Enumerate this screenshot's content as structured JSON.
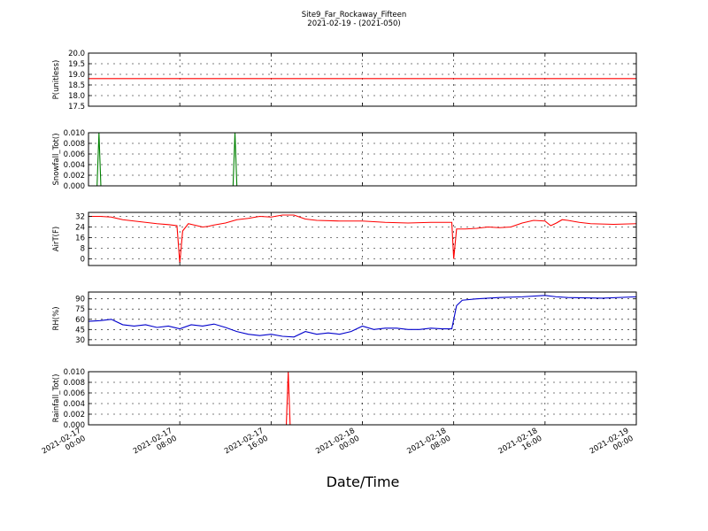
{
  "chart_data": {
    "title": "Site9_Far_Rockaway_Fifteen",
    "subtitle": "2021-02-19 - (2021-050)",
    "xlabel": "Date/Time",
    "type": "line",
    "x_ticks": [
      {
        "line1": "2021-02-17",
        "line2": "00:00"
      },
      {
        "line1": "2021-02-17",
        "line2": "08:00"
      },
      {
        "line1": "2021-02-17",
        "line2": "16:00"
      },
      {
        "line1": "2021-02-18",
        "line2": "00:00"
      },
      {
        "line1": "2021-02-18",
        "line2": "08:00"
      },
      {
        "line1": "2021-02-18",
        "line2": "16:00"
      },
      {
        "line1": "2021-02-19",
        "line2": "00:00"
      }
    ],
    "xlim": [
      "2021-02-17 00:00",
      "2021-02-19 00:00"
    ],
    "grid": true,
    "panels": [
      {
        "ylabel": "P(unitless)",
        "ylim": [
          17.5,
          20.0
        ],
        "yticks": [
          "17.5",
          "18.0",
          "18.5",
          "19.0",
          "19.5",
          "20.0"
        ],
        "color": "#ff0000",
        "points": [
          [
            "2021-02-17 00:00",
            18.8
          ],
          [
            "2021-02-19 00:00",
            18.8
          ]
        ]
      },
      {
        "ylabel": "Snowfall_Tot()",
        "ylim": [
          0,
          0.01
        ],
        "yticks": [
          "0.000",
          "0.002",
          "0.004",
          "0.006",
          "0.008",
          "0.010"
        ],
        "color": "#008000",
        "points": [
          [
            "2021-02-17 00:00",
            0
          ],
          [
            "2021-02-17 00:45",
            0
          ],
          [
            "2021-02-17 00:55",
            0.01
          ],
          [
            "2021-02-17 01:05",
            0
          ],
          [
            "2021-02-17 12:40",
            0
          ],
          [
            "2021-02-17 12:50",
            0.01
          ],
          [
            "2021-02-17 13:00",
            0
          ],
          [
            "2021-02-19 00:00",
            0
          ]
        ]
      },
      {
        "ylabel": "AirT(F)",
        "ylim": [
          -5,
          35
        ],
        "yticks": [
          "0",
          "8",
          "16",
          "24",
          "32"
        ],
        "color": "#ff0000",
        "points": [
          [
            "2021-02-17 00:00",
            32
          ],
          [
            "2021-02-17 01:00",
            32
          ],
          [
            "2021-02-17 02:00",
            31.5
          ],
          [
            "2021-02-17 03:00",
            29.5
          ],
          [
            "2021-02-17 04:00",
            28.5
          ],
          [
            "2021-02-17 05:00",
            27.5
          ],
          [
            "2021-02-17 06:00",
            26.5
          ],
          [
            "2021-02-17 07:00",
            25.8
          ],
          [
            "2021-02-17 07:45",
            25
          ],
          [
            "2021-02-17 08:00",
            -3
          ],
          [
            "2021-02-17 08:15",
            21
          ],
          [
            "2021-02-17 08:45",
            26.5
          ],
          [
            "2021-02-17 09:15",
            25.5
          ],
          [
            "2021-02-17 10:00",
            24
          ],
          [
            "2021-02-17 10:30",
            24.5
          ],
          [
            "2021-02-17 11:00",
            25.5
          ],
          [
            "2021-02-17 12:00",
            27
          ],
          [
            "2021-02-17 13:00",
            29.5
          ],
          [
            "2021-02-17 14:00",
            30.5
          ],
          [
            "2021-02-17 15:00",
            32
          ],
          [
            "2021-02-17 16:00",
            31.5
          ],
          [
            "2021-02-17 17:00",
            33
          ],
          [
            "2021-02-17 18:00",
            33
          ],
          [
            "2021-02-17 19:00",
            30
          ],
          [
            "2021-02-17 20:00",
            29
          ],
          [
            "2021-02-17 22:00",
            28.5
          ],
          [
            "2021-02-18 00:00",
            28.5
          ],
          [
            "2021-02-18 02:00",
            27.5
          ],
          [
            "2021-02-18 04:00",
            27
          ],
          [
            "2021-02-18 06:00",
            27.5
          ],
          [
            "2021-02-18 07:50",
            27.5
          ],
          [
            "2021-02-18 08:00",
            0
          ],
          [
            "2021-02-18 08:15",
            22.5
          ],
          [
            "2021-02-18 09:00",
            22.5
          ],
          [
            "2021-02-18 10:00",
            23
          ],
          [
            "2021-02-18 11:00",
            24
          ],
          [
            "2021-02-18 12:00",
            23.5
          ],
          [
            "2021-02-18 13:00",
            24
          ],
          [
            "2021-02-18 14:00",
            27
          ],
          [
            "2021-02-18 15:00",
            29
          ],
          [
            "2021-02-18 16:00",
            28.5
          ],
          [
            "2021-02-18 16:30",
            25
          ],
          [
            "2021-02-18 17:00",
            27
          ],
          [
            "2021-02-18 17:30",
            29.5
          ],
          [
            "2021-02-18 18:00",
            29
          ],
          [
            "2021-02-18 19:00",
            27.5
          ],
          [
            "2021-02-18 20:00",
            26.5
          ],
          [
            "2021-02-18 22:00",
            26
          ],
          [
            "2021-02-19 00:00",
            26.5
          ]
        ]
      },
      {
        "ylabel": "RH(%)",
        "ylim": [
          22,
          100
        ],
        "yticks": [
          "30",
          "45",
          "60",
          "75",
          "90"
        ],
        "color": "#0000cc",
        "points": [
          [
            "2021-02-17 00:00",
            57
          ],
          [
            "2021-02-17 01:00",
            58
          ],
          [
            "2021-02-17 02:00",
            60
          ],
          [
            "2021-02-17 03:00",
            52
          ],
          [
            "2021-02-17 04:00",
            50
          ],
          [
            "2021-02-17 05:00",
            52
          ],
          [
            "2021-02-17 06:00",
            48
          ],
          [
            "2021-02-17 07:00",
            50
          ],
          [
            "2021-02-17 08:00",
            46
          ],
          [
            "2021-02-17 09:00",
            52
          ],
          [
            "2021-02-17 10:00",
            50
          ],
          [
            "2021-02-17 11:00",
            53
          ],
          [
            "2021-02-17 12:00",
            48
          ],
          [
            "2021-02-17 13:00",
            42
          ],
          [
            "2021-02-17 14:00",
            38
          ],
          [
            "2021-02-17 15:00",
            36
          ],
          [
            "2021-02-17 16:00",
            38
          ],
          [
            "2021-02-17 17:00",
            35
          ],
          [
            "2021-02-17 18:00",
            34
          ],
          [
            "2021-02-17 19:00",
            42
          ],
          [
            "2021-02-17 20:00",
            38
          ],
          [
            "2021-02-17 21:00",
            40
          ],
          [
            "2021-02-17 22:00",
            38
          ],
          [
            "2021-02-17 23:00",
            42
          ],
          [
            "2021-02-18 00:00",
            50
          ],
          [
            "2021-02-18 01:00",
            45
          ],
          [
            "2021-02-18 02:00",
            47
          ],
          [
            "2021-02-18 03:00",
            47
          ],
          [
            "2021-02-18 04:00",
            45
          ],
          [
            "2021-02-18 05:00",
            45
          ],
          [
            "2021-02-18 06:00",
            47
          ],
          [
            "2021-02-18 07:00",
            46
          ],
          [
            "2021-02-18 07:50",
            46
          ],
          [
            "2021-02-18 08:15",
            80
          ],
          [
            "2021-02-18 08:45",
            88
          ],
          [
            "2021-02-18 10:00",
            90
          ],
          [
            "2021-02-18 12:00",
            92
          ],
          [
            "2021-02-18 14:00",
            93
          ],
          [
            "2021-02-18 16:00",
            95
          ],
          [
            "2021-02-18 17:00",
            93
          ],
          [
            "2021-02-18 18:00",
            92
          ],
          [
            "2021-02-18 21:00",
            91
          ],
          [
            "2021-02-19 00:00",
            93
          ]
        ]
      },
      {
        "ylabel": "Rainfall_Tot()",
        "ylim": [
          0,
          0.01
        ],
        "yticks": [
          "0.000",
          "0.002",
          "0.004",
          "0.006",
          "0.008",
          "0.010"
        ],
        "color": "#ff0000",
        "points": [
          [
            "2021-02-17 00:00",
            0
          ],
          [
            "2021-02-17 17:20",
            0
          ],
          [
            "2021-02-17 17:30",
            0.01
          ],
          [
            "2021-02-17 17:40",
            0
          ],
          [
            "2021-02-19 00:00",
            0
          ]
        ]
      }
    ]
  }
}
